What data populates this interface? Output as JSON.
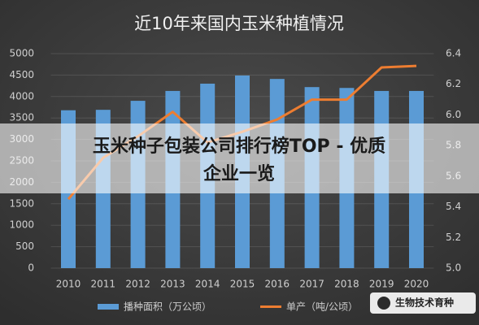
{
  "chart_data": {
    "type": "bar-line",
    "title": "近10年来国内玉米种植情况",
    "categories": [
      "2010",
      "2011",
      "2012",
      "2013",
      "2014",
      "2015",
      "2016",
      "2017",
      "2018",
      "2019",
      "2020"
    ],
    "series": [
      {
        "name": "播种面积（万公顷）",
        "color": "#5b9bd5",
        "type": "bar",
        "values": [
          3680,
          3690,
          3900,
          4130,
          4300,
          4490,
          4410,
          4220,
          4200,
          4130,
          4130
        ]
      },
      {
        "name": "单产（吨/公顷）",
        "color": "#ed7d31",
        "type": "line",
        "axis": "y2",
        "values": [
          5.45,
          5.72,
          5.86,
          6.02,
          5.82,
          5.89,
          5.97,
          6.1,
          6.1,
          6.31,
          6.32
        ]
      }
    ],
    "ylim": [
      0,
      5000
    ],
    "yticks": [
      0,
      500,
      1000,
      1500,
      2000,
      2500,
      3000,
      3500,
      4000,
      4500,
      5000
    ],
    "y2lim": [
      5,
      6.4
    ],
    "y2ticks": [
      {
        "value": 5,
        "label": "5.0"
      },
      5.2,
      5.4,
      5.6,
      5.8,
      {
        "value": 6,
        "label": "6.0"
      },
      6.2,
      6.4
    ],
    "grid": true
  },
  "overlay": {
    "banner_line1": "玉米种子包装公司排行榜TOP - 优质",
    "banner_line2": "企业一览",
    "watermark": "生物技术育种"
  }
}
